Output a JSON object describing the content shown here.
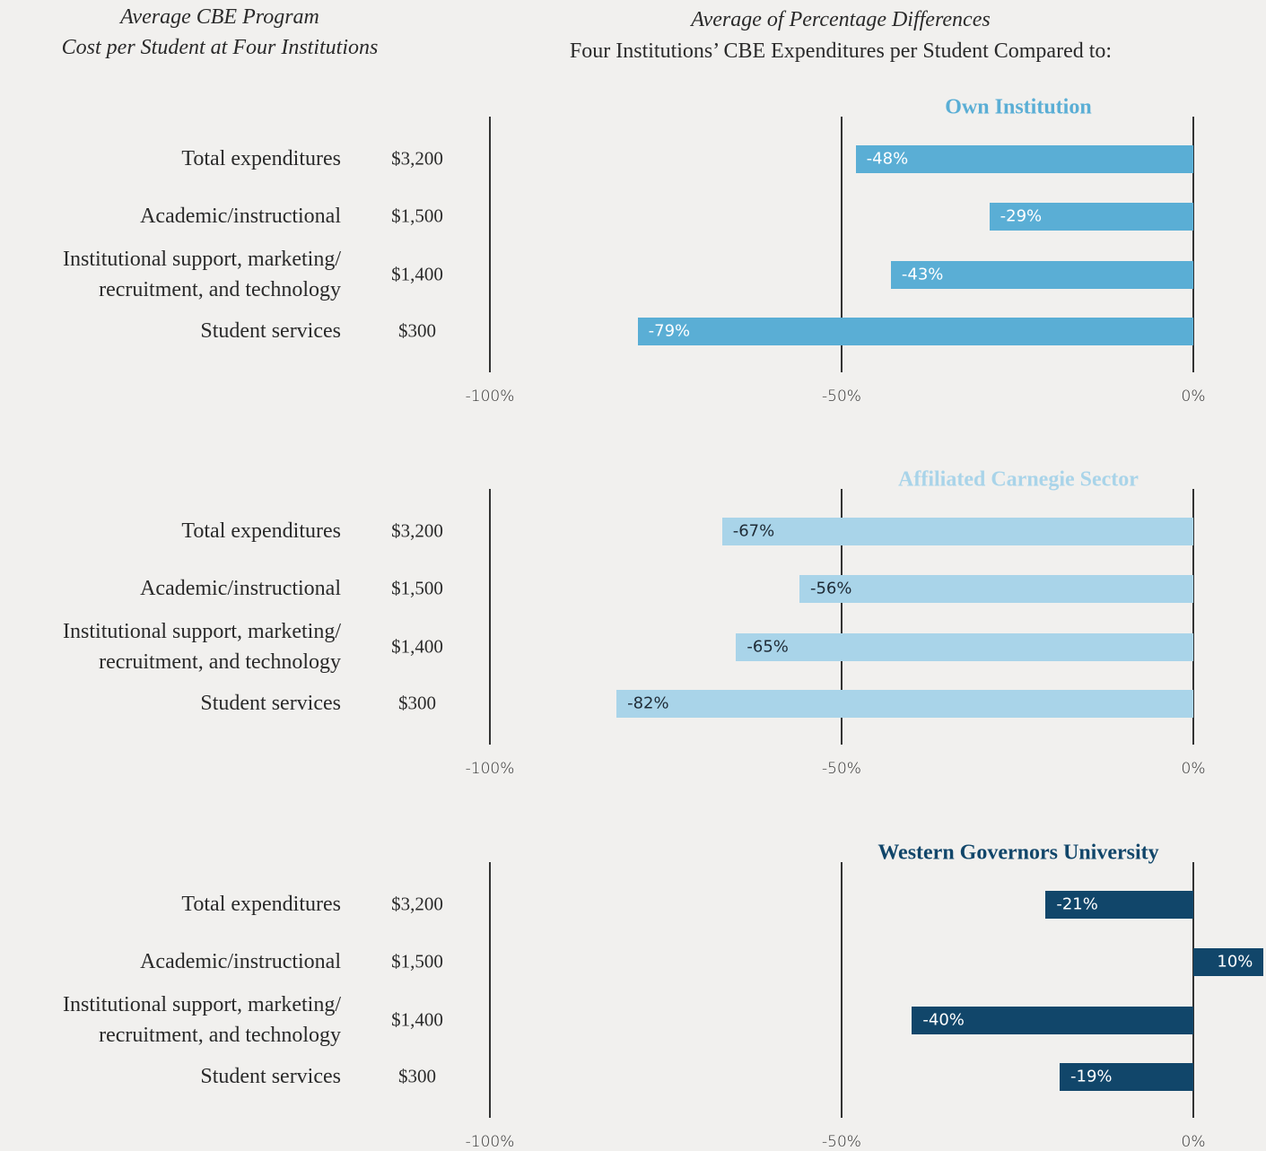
{
  "title_left": "Average CBE Program\nCost per Student at Four Institutions",
  "title_right": "Average of Percentage Differences",
  "subtitle_right": "Four Institutions’ CBE Expenditures per Student Compared to:",
  "chart_data": [
    {
      "type": "bar",
      "orientation": "horizontal",
      "title": "Own Institution",
      "color": "#5aaed5",
      "label_color": "#ffffff",
      "categories": [
        "Total expenditures",
        "Academic/instructional",
        "Institutional support, marketing/\nrecruitment, and technology",
        "Student services"
      ],
      "cost_labels": [
        "$3,200",
        "$1,500",
        "$1,400",
        "$300"
      ],
      "values": [
        -48,
        -29,
        -43,
        -79
      ],
      "value_labels": [
        "-48%",
        "-29%",
        "-43%",
        "-79%"
      ],
      "xlim": [
        -100,
        0
      ],
      "xticks": [
        {
          "value": -100,
          "label": "-100%"
        },
        {
          "value": -50,
          "label": "-50%"
        },
        {
          "value": 0,
          "label": "0%"
        }
      ],
      "grid": true
    },
    {
      "type": "bar",
      "orientation": "horizontal",
      "title": "Affiliated Carnegie Sector",
      "color": "#a9d4e9",
      "label_color": "#1f2b36",
      "categories": [
        "Total expenditures",
        "Academic/instructional",
        "Institutional support, marketing/\nrecruitment, and technology",
        "Student services"
      ],
      "cost_labels": [
        "$3,200",
        "$1,500",
        "$1,400",
        "$300"
      ],
      "values": [
        -67,
        -56,
        -65,
        -82
      ],
      "value_labels": [
        "-67%",
        "-56%",
        "-65%",
        "-82%"
      ],
      "xlim": [
        -100,
        0
      ],
      "xticks": [
        {
          "value": -100,
          "label": "-100%"
        },
        {
          "value": -50,
          "label": "-50%"
        },
        {
          "value": 0,
          "label": "0%"
        }
      ],
      "grid": true
    },
    {
      "type": "bar",
      "orientation": "horizontal",
      "title": "Western Governors University",
      "color": "#11466a",
      "label_color": "#ffffff",
      "categories": [
        "Total expenditures",
        "Academic/instructional",
        "Institutional support, marketing/\nrecruitment, and technology",
        "Student services"
      ],
      "cost_labels": [
        "$3,200",
        "$1,500",
        "$1,400",
        "$300"
      ],
      "values": [
        -21,
        10,
        -40,
        -19
      ],
      "value_labels": [
        "-21%",
        "10%",
        "-40%",
        "-19%"
      ],
      "xlim": [
        -100,
        0
      ],
      "xticks": [
        {
          "value": -100,
          "label": "-100%"
        },
        {
          "value": -50,
          "label": "-50%"
        },
        {
          "value": 0,
          "label": "0%"
        }
      ],
      "grid": true
    }
  ]
}
